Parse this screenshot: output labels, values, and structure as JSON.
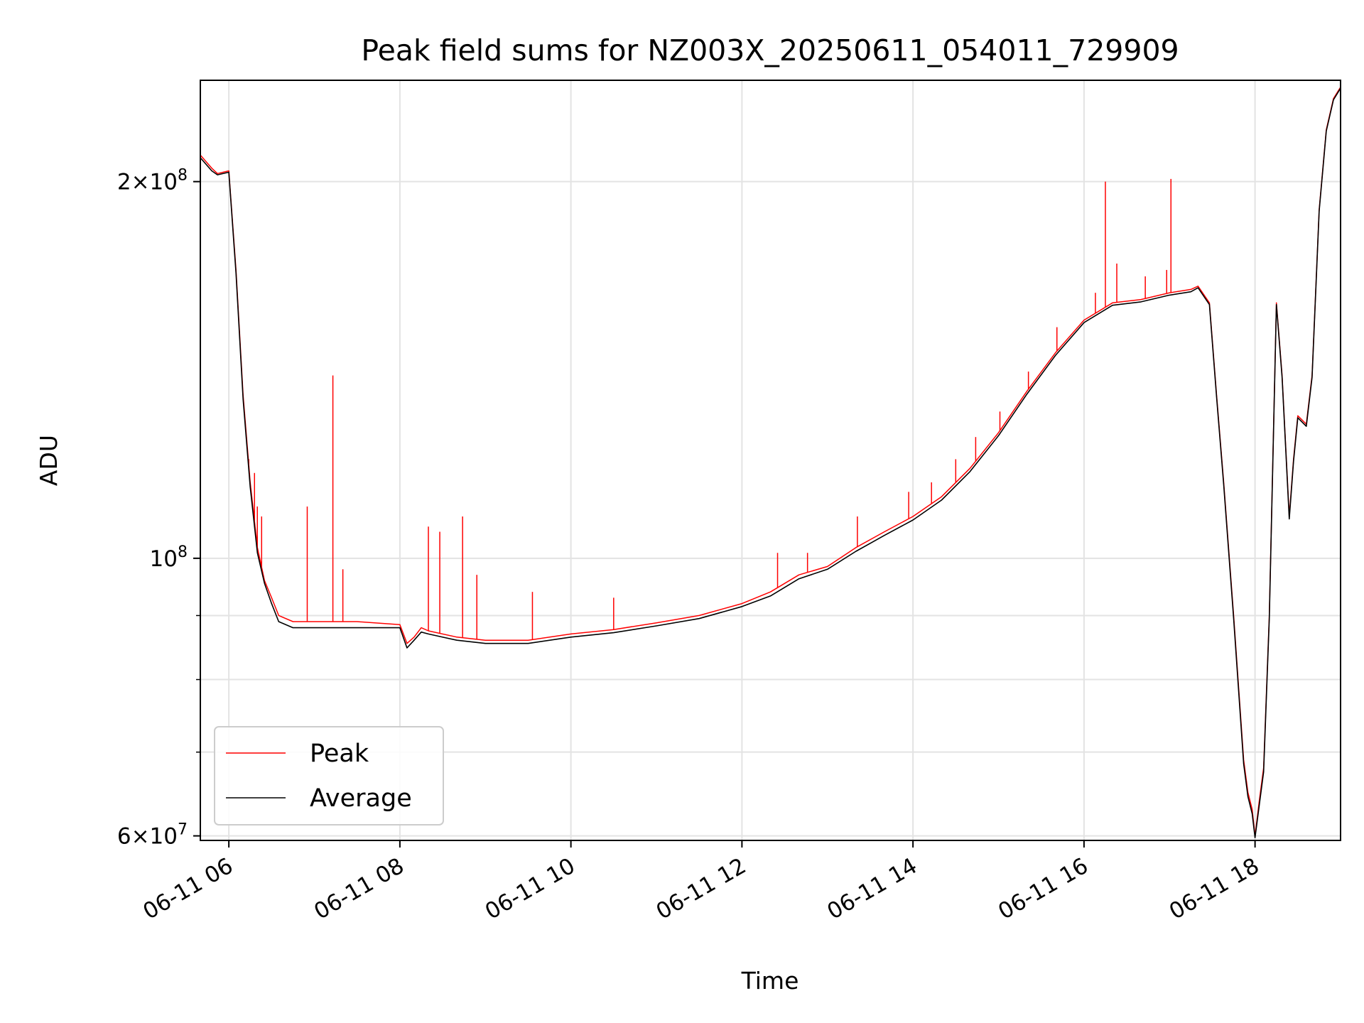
{
  "chart_data": {
    "type": "line",
    "title": "Peak field sums for NZ003X_20250611_054011_729909",
    "xlabel": "Time",
    "ylabel": "ADU",
    "y_scale": "log",
    "ylim": [
      59500000,
      241000000
    ],
    "xlim": [
      "2025-06-11 05:40",
      "2025-06-11 19:00"
    ],
    "x_ticks": [
      {
        "time": "2025-06-11 06:00",
        "label": "06-11 06"
      },
      {
        "time": "2025-06-11 08:00",
        "label": "06-11 08"
      },
      {
        "time": "2025-06-11 10:00",
        "label": "06-11 10"
      },
      {
        "time": "2025-06-11 12:00",
        "label": "06-11 12"
      },
      {
        "time": "2025-06-11 14:00",
        "label": "06-11 14"
      },
      {
        "time": "2025-06-11 16:00",
        "label": "06-11 16"
      },
      {
        "time": "2025-06-11 18:00",
        "label": "06-11 18"
      }
    ],
    "y_ticks": [
      {
        "value": 200000000,
        "mantissa": "2",
        "exponent": "8"
      },
      {
        "value": 100000000,
        "mantissa": "",
        "exponent": "8"
      },
      {
        "value": 60000000,
        "mantissa": "6",
        "exponent": "7"
      }
    ],
    "y_minor_ticks": [
      70000000,
      80000000,
      90000000
    ],
    "grid": true,
    "legend_position": "lower-left",
    "series": [
      {
        "name": "Peak",
        "color": "#ff0000",
        "x": [
          "2025-06-11 05:40",
          "2025-06-11 05:48",
          "2025-06-11 05:52",
          "2025-06-11 06:00",
          "2025-06-11 06:05",
          "2025-06-11 06:10",
          "2025-06-11 06:15",
          "2025-06-11 06:20",
          "2025-06-11 06:25",
          "2025-06-11 06:30",
          "2025-06-11 06:35",
          "2025-06-11 06:45",
          "2025-06-11 07:00",
          "2025-06-11 07:30",
          "2025-06-11 08:00",
          "2025-06-11 08:05",
          "2025-06-11 08:10",
          "2025-06-11 08:15",
          "2025-06-11 08:20",
          "2025-06-11 08:40",
          "2025-06-11 09:00",
          "2025-06-11 09:30",
          "2025-06-11 10:00",
          "2025-06-11 10:30",
          "2025-06-11 11:00",
          "2025-06-11 11:30",
          "2025-06-11 12:00",
          "2025-06-11 12:20",
          "2025-06-11 12:40",
          "2025-06-11 13:00",
          "2025-06-11 13:20",
          "2025-06-11 13:40",
          "2025-06-11 14:00",
          "2025-06-11 14:20",
          "2025-06-11 14:40",
          "2025-06-11 15:00",
          "2025-06-11 15:20",
          "2025-06-11 15:40",
          "2025-06-11 16:00",
          "2025-06-11 16:20",
          "2025-06-11 16:40",
          "2025-06-11 17:00",
          "2025-06-11 17:15",
          "2025-06-11 17:20",
          "2025-06-11 17:28",
          "2025-06-11 17:33",
          "2025-06-11 17:38",
          "2025-06-11 17:45",
          "2025-06-11 17:52",
          "2025-06-11 17:55",
          "2025-06-11 17:58",
          "2025-06-11 18:00",
          "2025-06-11 18:03",
          "2025-06-11 18:06",
          "2025-06-11 18:10",
          "2025-06-11 18:15",
          "2025-06-11 18:19",
          "2025-06-11 18:24",
          "2025-06-11 18:27",
          "2025-06-11 18:30",
          "2025-06-11 18:36",
          "2025-06-11 18:40",
          "2025-06-11 18:45",
          "2025-06-11 18:50",
          "2025-06-11 18:55",
          "2025-06-11 19:00"
        ],
        "y": [
          210000000,
          205000000,
          203000000,
          204000000,
          170000000,
          135000000,
          115000000,
          102000000,
          96000000,
          93000000,
          90000000,
          89000000,
          89000000,
          89000000,
          88500000,
          85500000,
          86500000,
          88000000,
          87500000,
          86500000,
          86000000,
          86000000,
          87000000,
          87700000,
          88800000,
          90000000,
          92000000,
          94000000,
          97000000,
          98500000,
          102000000,
          105000000,
          108000000,
          112000000,
          118000000,
          126000000,
          136000000,
          146000000,
          155000000,
          160000000,
          161000000,
          163000000,
          164000000,
          165000000,
          160000000,
          135000000,
          115000000,
          90000000,
          69000000,
          65000000,
          63000000,
          60000000,
          64000000,
          68000000,
          90000000,
          160000000,
          140000000,
          108000000,
          120000000,
          130000000,
          128000000,
          140000000,
          190000000,
          220000000,
          233000000,
          238000000
        ],
        "spikes": [
          {
            "x": "2025-06-11 06:14",
            "y": 120000000
          },
          {
            "x": "2025-06-11 06:18",
            "y": 117000000
          },
          {
            "x": "2025-06-11 06:20",
            "y": 110000000
          },
          {
            "x": "2025-06-11 06:23",
            "y": 108000000
          },
          {
            "x": "2025-06-11 06:55",
            "y": 110000000
          },
          {
            "x": "2025-06-11 07:13",
            "y": 140000000
          },
          {
            "x": "2025-06-11 07:20",
            "y": 98000000
          },
          {
            "x": "2025-06-11 08:20",
            "y": 106000000
          },
          {
            "x": "2025-06-11 08:28",
            "y": 105000000
          },
          {
            "x": "2025-06-11 08:44",
            "y": 108000000
          },
          {
            "x": "2025-06-11 08:54",
            "y": 97000000
          },
          {
            "x": "2025-06-11 09:33",
            "y": 94000000
          },
          {
            "x": "2025-06-11 10:30",
            "y": 93000000
          },
          {
            "x": "2025-06-11 12:25",
            "y": 101000000
          },
          {
            "x": "2025-06-11 12:46",
            "y": 101000000
          },
          {
            "x": "2025-06-11 13:21",
            "y": 108000000
          },
          {
            "x": "2025-06-11 13:57",
            "y": 113000000
          },
          {
            "x": "2025-06-11 14:13",
            "y": 115000000
          },
          {
            "x": "2025-06-11 14:30",
            "y": 120000000
          },
          {
            "x": "2025-06-11 14:44",
            "y": 125000000
          },
          {
            "x": "2025-06-11 15:01",
            "y": 131000000
          },
          {
            "x": "2025-06-11 15:21",
            "y": 141000000
          },
          {
            "x": "2025-06-11 15:41",
            "y": 153000000
          },
          {
            "x": "2025-06-11 16:08",
            "y": 163000000
          },
          {
            "x": "2025-06-11 16:15",
            "y": 200000000
          },
          {
            "x": "2025-06-11 16:23",
            "y": 172000000
          },
          {
            "x": "2025-06-11 16:43",
            "y": 168000000
          },
          {
            "x": "2025-06-11 16:58",
            "y": 170000000
          },
          {
            "x": "2025-06-11 17:01",
            "y": 201000000
          }
        ]
      },
      {
        "name": "Average",
        "color": "#000000",
        "x": [
          "2025-06-11 05:40",
          "2025-06-11 05:48",
          "2025-06-11 05:52",
          "2025-06-11 06:00",
          "2025-06-11 06:05",
          "2025-06-11 06:10",
          "2025-06-11 06:15",
          "2025-06-11 06:20",
          "2025-06-11 06:25",
          "2025-06-11 06:30",
          "2025-06-11 06:35",
          "2025-06-11 06:45",
          "2025-06-11 07:00",
          "2025-06-11 07:30",
          "2025-06-11 08:00",
          "2025-06-11 08:05",
          "2025-06-11 08:10",
          "2025-06-11 08:15",
          "2025-06-11 08:20",
          "2025-06-11 08:40",
          "2025-06-11 09:00",
          "2025-06-11 09:30",
          "2025-06-11 10:00",
          "2025-06-11 10:30",
          "2025-06-11 11:00",
          "2025-06-11 11:30",
          "2025-06-11 12:00",
          "2025-06-11 12:20",
          "2025-06-11 12:40",
          "2025-06-11 13:00",
          "2025-06-11 13:20",
          "2025-06-11 13:40",
          "2025-06-11 14:00",
          "2025-06-11 14:20",
          "2025-06-11 14:40",
          "2025-06-11 15:00",
          "2025-06-11 15:20",
          "2025-06-11 15:40",
          "2025-06-11 16:00",
          "2025-06-11 16:20",
          "2025-06-11 16:40",
          "2025-06-11 17:00",
          "2025-06-11 17:15",
          "2025-06-11 17:20",
          "2025-06-11 17:28",
          "2025-06-11 17:33",
          "2025-06-11 17:38",
          "2025-06-11 17:45",
          "2025-06-11 17:52",
          "2025-06-11 17:55",
          "2025-06-11 17:58",
          "2025-06-11 18:00",
          "2025-06-11 18:03",
          "2025-06-11 18:06",
          "2025-06-11 18:10",
          "2025-06-11 18:15",
          "2025-06-11 18:19",
          "2025-06-11 18:24",
          "2025-06-11 18:27",
          "2025-06-11 18:30",
          "2025-06-11 18:36",
          "2025-06-11 18:40",
          "2025-06-11 18:45",
          "2025-06-11 18:50",
          "2025-06-11 18:55",
          "2025-06-11 19:00"
        ],
        "y": [
          209000000,
          204000000,
          202500000,
          203500000,
          169000000,
          134000000,
          114000000,
          101000000,
          95500000,
          92000000,
          89000000,
          88000000,
          88000000,
          88000000,
          88000000,
          84800000,
          86000000,
          87300000,
          87000000,
          86000000,
          85500000,
          85500000,
          86500000,
          87200000,
          88300000,
          89500000,
          91500000,
          93300000,
          96300000,
          98000000,
          101300000,
          104300000,
          107300000,
          111300000,
          117300000,
          125300000,
          135300000,
          145300000,
          154300000,
          159300000,
          160300000,
          162300000,
          163300000,
          164500000,
          159500000,
          134500000,
          114500000,
          89500000,
          68500000,
          64500000,
          62500000,
          59800000,
          63500000,
          67500000,
          89500000,
          159500000,
          139500000,
          107500000,
          119500000,
          129500000,
          127500000,
          139500000,
          189500000,
          219500000,
          232500000,
          237500000
        ]
      }
    ]
  }
}
